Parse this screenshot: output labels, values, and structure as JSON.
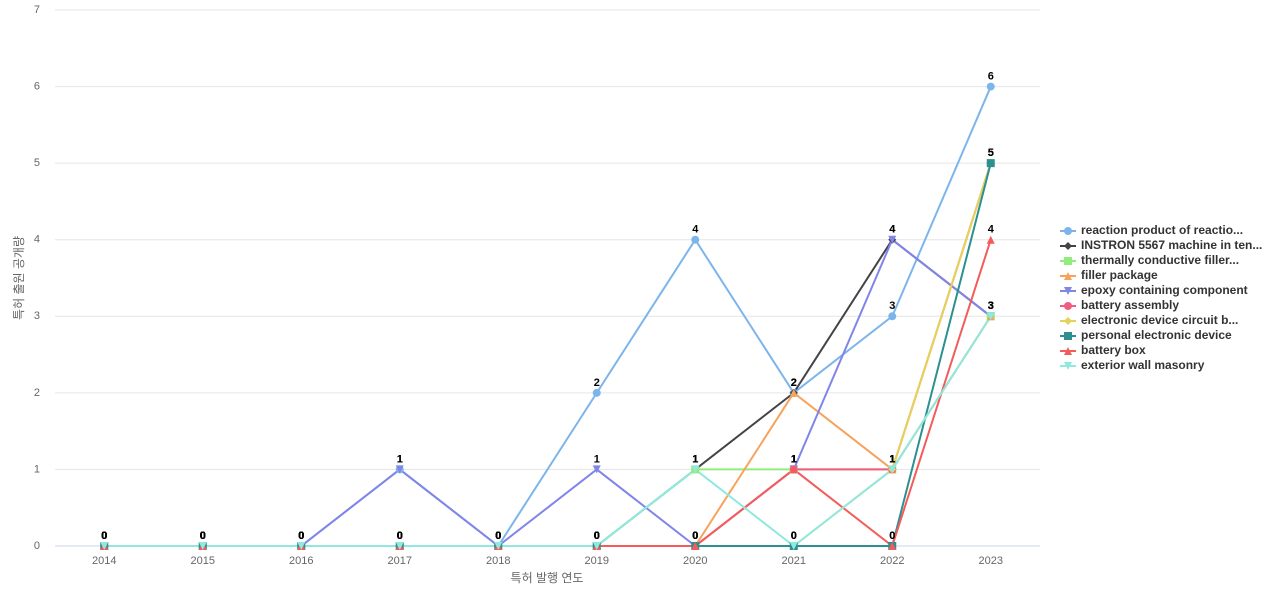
{
  "chart_data": {
    "type": "line",
    "x_label": "특허 발행 연도",
    "y_label": "특허 출원 공개량",
    "categories": [
      "2014",
      "2015",
      "2016",
      "2017",
      "2018",
      "2019",
      "2020",
      "2021",
      "2022",
      "2023"
    ],
    "ylim": [
      0,
      7
    ],
    "yticks": [
      0,
      1,
      2,
      3,
      4,
      5,
      6,
      7
    ],
    "grid": true,
    "legend": "right",
    "series": [
      {
        "name": "reaction product of reactio...",
        "color": "#7cb5ec",
        "values": [
          0,
          0,
          0,
          1,
          0,
          2,
          4,
          2,
          3,
          6
        ]
      },
      {
        "name": "INSTRON 5567 machine in ten...",
        "color": "#434348",
        "values": [
          0,
          0,
          0,
          0,
          0,
          0,
          1,
          2,
          4,
          3
        ]
      },
      {
        "name": "thermally conductive filler...",
        "color": "#90ed7d",
        "values": [
          0,
          0,
          0,
          0,
          0,
          0,
          1,
          1,
          1,
          3
        ]
      },
      {
        "name": "filler package",
        "color": "#f7a35c",
        "values": [
          0,
          0,
          0,
          0,
          0,
          0,
          0,
          2,
          1,
          3
        ]
      },
      {
        "name": "epoxy containing component",
        "color": "#8085e9",
        "values": [
          0,
          0,
          0,
          1,
          0,
          1,
          0,
          1,
          4,
          3
        ]
      },
      {
        "name": "battery assembly",
        "color": "#f15c80",
        "values": [
          0,
          0,
          0,
          0,
          0,
          0,
          0,
          1,
          1,
          5
        ]
      },
      {
        "name": "electronic device circuit b...",
        "color": "#e4d354",
        "values": [
          0,
          0,
          0,
          0,
          0,
          0,
          0,
          0,
          1,
          5
        ]
      },
      {
        "name": "personal electronic device",
        "color": "#2b908f",
        "values": [
          0,
          0,
          0,
          0,
          0,
          0,
          0,
          0,
          0,
          5
        ]
      },
      {
        "name": "battery box",
        "color": "#f45b5b",
        "values": [
          0,
          0,
          0,
          0,
          0,
          0,
          0,
          1,
          0,
          4
        ]
      },
      {
        "name": "exterior wall masonry",
        "color": "#91e8e1",
        "values": [
          0,
          0,
          0,
          0,
          0,
          0,
          1,
          0,
          1,
          3
        ]
      }
    ]
  }
}
